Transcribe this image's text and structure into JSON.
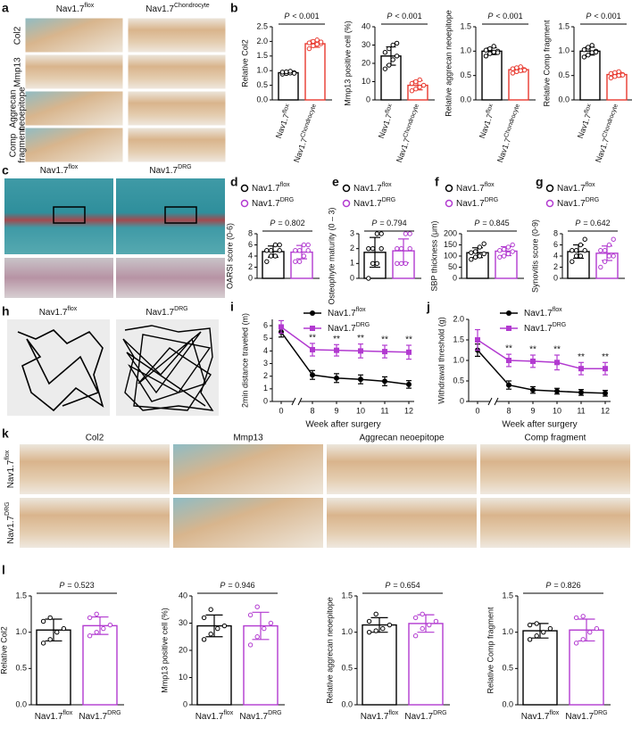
{
  "panel_labels": [
    "a",
    "b",
    "c",
    "d",
    "e",
    "f",
    "g",
    "h",
    "i",
    "j",
    "k",
    "l"
  ],
  "image_panels": {
    "a": {
      "columns": [
        {
          "text": "Nav1.7",
          "sup": "flox"
        },
        {
          "text": "Nav1.7",
          "sup": "Chondrocyte"
        }
      ],
      "rows": [
        [
          "Col2"
        ],
        [
          "Mmp13"
        ],
        [
          "Aggrecan",
          "neoepitope"
        ],
        [
          "Comp",
          "fragment"
        ]
      ]
    },
    "c": {
      "columns": [
        {
          "text": "Nav1.7",
          "sup": "flox"
        },
        {
          "text": "Nav1.7",
          "sup": "DRG"
        }
      ]
    },
    "h": {
      "columns": [
        {
          "text": "Nav1.7",
          "sup": "flox"
        },
        {
          "text": "Nav1.7",
          "sup": "DRG"
        }
      ]
    },
    "k": {
      "columns": [
        "Col2",
        "Mmp13",
        "Aggrecan neoepitope",
        "Comp fragment"
      ],
      "rows": [
        {
          "text": "Nav1.7",
          "sup": "flox"
        },
        {
          "text": "Nav1.7",
          "sup": "DRG"
        }
      ]
    }
  },
  "chart_data": [
    {
      "type": "bar",
      "ylabel": "Relative Col2",
      "ylim": [
        0,
        2.5
      ],
      "yticks": [
        {
          "value": 0,
          "label": "0.0"
        },
        {
          "value": 0.5,
          "label": "0.5"
        },
        {
          "value": 1,
          "label": "1.0"
        },
        {
          "value": 1.5,
          "label": "1.5"
        },
        {
          "value": 2,
          "label": "2.0"
        },
        {
          "value": 2.5,
          "label": "2.5"
        }
      ],
      "p_value": {
        "symbol": "P",
        "text": "< 0.001"
      },
      "series": [
        {
          "name": {
            "text": "Nav1.7",
            "sup": "flox"
          },
          "color": "#000000",
          "value": 0.93,
          "error": 0.05,
          "points": [
            0.88,
            0.9,
            0.92,
            0.93,
            0.95,
            0.96,
            0.98,
            0.91
          ]
        },
        {
          "name": {
            "text": "Nav1.7",
            "sup": "Chondrocyte"
          },
          "color": "#e8392f",
          "value": 1.92,
          "error": 0.12,
          "points": [
            1.75,
            1.85,
            1.9,
            1.92,
            1.95,
            2.0,
            2.05,
            1.98
          ]
        }
      ]
    },
    {
      "type": "bar",
      "ylabel": "Mmp13 positive cell (%)",
      "ylim": [
        0,
        40
      ],
      "yticks": [
        0,
        10,
        20,
        30,
        40
      ],
      "p_value": {
        "symbol": "P",
        "text": "< 0.001"
      },
      "series": [
        {
          "name": {
            "text": "Nav1.7",
            "sup": "flox"
          },
          "color": "#000000",
          "value": 24,
          "error": 5,
          "points": [
            17,
            19,
            22,
            24,
            26,
            28,
            30,
            31
          ]
        },
        {
          "name": {
            "text": "Nav1.7",
            "sup": "Chondrocyte"
          },
          "color": "#e8392f",
          "value": 8,
          "error": 2.5,
          "points": [
            5,
            6,
            7,
            8,
            9,
            10,
            11,
            8
          ]
        }
      ]
    },
    {
      "type": "bar",
      "ylabel": "Relative aggrecan neoepitope",
      "ylim": [
        0,
        1.5
      ],
      "yticks": [
        {
          "value": 0,
          "label": "0.0"
        },
        {
          "value": 0.5,
          "label": "0.5"
        },
        {
          "value": 1,
          "label": "1.0"
        },
        {
          "value": 1.5,
          "label": "1.5"
        }
      ],
      "p_value": {
        "symbol": "P",
        "text": "< 0.001"
      },
      "series": [
        {
          "name": {
            "text": "Nav1.7",
            "sup": "flox"
          },
          "color": "#000000",
          "value": 1.0,
          "error": 0.07,
          "points": [
            0.9,
            0.95,
            0.98,
            1.0,
            1.02,
            1.05,
            1.1,
            0.97
          ]
        },
        {
          "name": {
            "text": "Nav1.7",
            "sup": "Chondrocyte"
          },
          "color": "#e8392f",
          "value": 0.62,
          "error": 0.05,
          "points": [
            0.55,
            0.58,
            0.6,
            0.62,
            0.64,
            0.66,
            0.68,
            0.61
          ]
        }
      ]
    },
    {
      "type": "bar",
      "ylabel": "Relative Comp fragment",
      "ylim": [
        0,
        1.5
      ],
      "yticks": [
        {
          "value": 0,
          "label": "0.0"
        },
        {
          "value": 0.5,
          "label": "0.5"
        },
        {
          "value": 1,
          "label": "1.0"
        },
        {
          "value": 1.5,
          "label": "1.5"
        }
      ],
      "p_value": {
        "symbol": "P",
        "text": "< 0.001"
      },
      "series": [
        {
          "name": {
            "text": "Nav1.7",
            "sup": "flox"
          },
          "color": "#000000",
          "value": 1.0,
          "error": 0.08,
          "points": [
            0.88,
            0.92,
            0.97,
            1.0,
            1.03,
            1.08,
            1.12,
            0.98
          ]
        },
        {
          "name": {
            "text": "Nav1.7",
            "sup": "Chondrocyte"
          },
          "color": "#e8392f",
          "value": 0.52,
          "error": 0.05,
          "points": [
            0.45,
            0.48,
            0.5,
            0.52,
            0.54,
            0.56,
            0.58,
            0.51
          ]
        }
      ]
    },
    {
      "type": "bar",
      "legend": true,
      "ylabel": "OARSI score (0-6)",
      "ylim": [
        0,
        8
      ],
      "yticks": [
        0,
        2,
        4,
        6,
        8
      ],
      "p_value": {
        "symbol": "P",
        "text": "= 0.802"
      },
      "series": [
        {
          "name": {
            "text": "Nav1.7",
            "sup": "flox"
          },
          "color": "#000000",
          "value": 4.8,
          "error": 1.0,
          "points": [
            3,
            4,
            4,
            5,
            5,
            5,
            6,
            6
          ]
        },
        {
          "name": {
            "text": "Nav1.7",
            "sup": "DRG"
          },
          "color": "#b23ad0",
          "value": 4.7,
          "error": 1.2,
          "points": [
            3,
            3,
            4,
            5,
            5,
            5,
            6,
            6
          ]
        }
      ]
    },
    {
      "type": "bar",
      "legend": true,
      "ylabel": "Osteophyte maturity (0 – 3)",
      "ylim": [
        0,
        3
      ],
      "yticks": [
        0,
        1,
        2,
        3
      ],
      "p_value": {
        "symbol": "P",
        "text": "= 0.794"
      },
      "series": [
        {
          "name": {
            "text": "Nav1.7",
            "sup": "flox"
          },
          "color": "#000000",
          "value": 1.75,
          "error": 1.0,
          "points": [
            0,
            1,
            1,
            2,
            2,
            2,
            3,
            3
          ]
        },
        {
          "name": {
            "text": "Nav1.7",
            "sup": "DRG"
          },
          "color": "#b23ad0",
          "value": 1.85,
          "error": 0.8,
          "points": [
            1,
            1,
            1,
            2,
            2,
            2,
            3,
            3
          ]
        }
      ]
    },
    {
      "type": "bar",
      "legend": true,
      "ylabel": "SBP thickness (μm)",
      "ylim": [
        0,
        200
      ],
      "yticks": [
        0,
        50,
        100,
        150,
        200
      ],
      "p_value": {
        "symbol": "P",
        "text": "= 0.845"
      },
      "series": [
        {
          "name": {
            "text": "Nav1.7",
            "sup": "flox"
          },
          "color": "#000000",
          "value": 115,
          "error": 22,
          "points": [
            85,
            95,
            100,
            110,
            115,
            120,
            140,
            155
          ]
        },
        {
          "name": {
            "text": "Nav1.7",
            "sup": "DRG"
          },
          "color": "#b23ad0",
          "value": 122,
          "error": 20,
          "points": [
            95,
            100,
            110,
            120,
            125,
            130,
            140,
            150
          ]
        }
      ]
    },
    {
      "type": "bar",
      "legend": true,
      "ylabel": "Synovitis score (0-9)",
      "ylim": [
        0,
        8
      ],
      "yticks": [
        0,
        2,
        4,
        6,
        8
      ],
      "p_value": {
        "symbol": "P",
        "text": "= 0.642"
      },
      "series": [
        {
          "name": {
            "text": "Nav1.7",
            "sup": "flox"
          },
          "color": "#000000",
          "value": 4.8,
          "error": 1.2,
          "points": [
            3,
            4,
            4,
            5,
            5,
            5,
            6,
            7
          ]
        },
        {
          "name": {
            "text": "Nav1.7",
            "sup": "DRG"
          },
          "color": "#b23ad0",
          "value": 4.5,
          "error": 1.3,
          "points": [
            2,
            3,
            4,
            4,
            5,
            5,
            6,
            7
          ]
        }
      ]
    },
    {
      "type": "line",
      "ylabel": "2min distance traveled  (m)",
      "xlabel": "Week after surgery",
      "categories": [
        "0",
        "8",
        "9",
        "10",
        "11",
        "12"
      ],
      "ylim": [
        0,
        6.5
      ],
      "yticks": [
        0,
        1,
        2,
        3,
        4,
        5,
        6
      ],
      "sig_labels": [
        null,
        "**",
        "**",
        "**",
        "**",
        "**"
      ],
      "series": [
        {
          "name": {
            "text": "Nav1.7",
            "sup": "flox"
          },
          "color": "#000000",
          "marker": "circle",
          "values": [
            5.5,
            2.1,
            1.85,
            1.75,
            1.6,
            1.35
          ],
          "errors": [
            0.4,
            0.35,
            0.35,
            0.35,
            0.35,
            0.3
          ]
        },
        {
          "name": {
            "text": "Nav1.7",
            "sup": "DRG"
          },
          "color": "#b23ad0",
          "marker": "square",
          "values": [
            5.9,
            4.1,
            4.05,
            4.0,
            3.95,
            3.9
          ],
          "errors": [
            0.5,
            0.5,
            0.45,
            0.55,
            0.5,
            0.55
          ]
        }
      ]
    },
    {
      "type": "line",
      "ylabel": "Withdrawal threshold (g)",
      "xlabel": "Week after surgery",
      "categories": [
        "0",
        "8",
        "9",
        "10",
        "11",
        "12"
      ],
      "ylim": [
        0,
        2
      ],
      "yticks": [
        0,
        0.5,
        {
          "value": 1,
          "label": "1.0"
        },
        1.5,
        {
          "value": 2,
          "label": "2.0"
        }
      ],
      "sig_labels": [
        null,
        "**",
        "**",
        "**",
        "**",
        "**"
      ],
      "series": [
        {
          "name": {
            "text": "Nav1.7",
            "sup": "flox"
          },
          "color": "#000000",
          "marker": "circle",
          "values": [
            1.25,
            0.4,
            0.28,
            0.25,
            0.22,
            0.2
          ],
          "errors": [
            0.15,
            0.1,
            0.08,
            0.07,
            0.07,
            0.07
          ]
        },
        {
          "name": {
            "text": "Nav1.7",
            "sup": "DRG"
          },
          "color": "#b23ad0",
          "marker": "square",
          "values": [
            1.5,
            1.0,
            0.98,
            0.95,
            0.8,
            0.8
          ],
          "errors": [
            0.25,
            0.15,
            0.15,
            0.18,
            0.15,
            0.15
          ]
        }
      ]
    },
    {
      "type": "bar",
      "ylabel": "Relative Col2",
      "ylim": [
        0,
        1.5
      ],
      "yticks": [
        {
          "value": 0,
          "label": "0.0"
        },
        {
          "value": 0.5,
          "label": "0.5"
        },
        {
          "value": 1,
          "label": "1.0"
        },
        {
          "value": 1.5,
          "label": "1.5"
        }
      ],
      "p_value": {
        "symbol": "P",
        "text": "= 0.523"
      },
      "series": [
        {
          "name": {
            "text": "Nav1.7",
            "sup": "flox"
          },
          "color": "#000000",
          "value": 1.03,
          "error": 0.15,
          "points": [
            0.85,
            0.9,
            1.0,
            1.05,
            1.15,
            1.2
          ]
        },
        {
          "name": {
            "text": "Nav1.7",
            "sup": "DRG"
          },
          "color": "#b23ad0",
          "value": 1.09,
          "error": 0.12,
          "points": [
            0.95,
            1.0,
            1.05,
            1.1,
            1.2,
            1.25
          ]
        }
      ]
    },
    {
      "type": "bar",
      "ylabel": "Mmp13 positive cell (%)",
      "ylim": [
        0,
        40
      ],
      "yticks": [
        0,
        10,
        20,
        30,
        40
      ],
      "p_value": {
        "symbol": "P",
        "text": "= 0.946"
      },
      "series": [
        {
          "name": {
            "text": "Nav1.7",
            "sup": "flox"
          },
          "color": "#000000",
          "value": 29,
          "error": 4,
          "points": [
            24,
            26,
            28,
            29,
            32,
            35
          ]
        },
        {
          "name": {
            "text": "Nav1.7",
            "sup": "DRG"
          },
          "color": "#b23ad0",
          "value": 29,
          "error": 5,
          "points": [
            22,
            25,
            28,
            30,
            33,
            36
          ]
        }
      ]
    },
    {
      "type": "bar",
      "ylabel": "Relative aggrecan neoepitope",
      "ylim": [
        0,
        1.5
      ],
      "yticks": [
        {
          "value": 0,
          "label": "0.0"
        },
        {
          "value": 0.5,
          "label": "0.5"
        },
        {
          "value": 1,
          "label": "1.0"
        },
        {
          "value": 1.5,
          "label": "1.5"
        }
      ],
      "p_value": {
        "symbol": "P",
        "text": "= 0.654"
      },
      "series": [
        {
          "name": {
            "text": "Nav1.7",
            "sup": "flox"
          },
          "color": "#000000",
          "value": 1.1,
          "error": 0.1,
          "points": [
            1.0,
            1.02,
            1.05,
            1.1,
            1.15,
            1.25
          ]
        },
        {
          "name": {
            "text": "Nav1.7",
            "sup": "DRG"
          },
          "color": "#b23ad0",
          "value": 1.12,
          "error": 0.12,
          "points": [
            0.95,
            1.05,
            1.1,
            1.15,
            1.2,
            1.25
          ]
        }
      ]
    },
    {
      "type": "bar",
      "ylabel": "Relative Comp fragment",
      "ylim": [
        0,
        1.5
      ],
      "yticks": [
        {
          "value": 0,
          "label": "0.0"
        },
        {
          "value": 0.5,
          "label": "0.5"
        },
        {
          "value": 1,
          "label": "1.0"
        },
        {
          "value": 1.5,
          "label": "1.5"
        }
      ],
      "p_value": {
        "symbol": "P",
        "text": "= 0.826"
      },
      "series": [
        {
          "name": {
            "text": "Nav1.7",
            "sup": "flox"
          },
          "color": "#000000",
          "value": 1.02,
          "error": 0.1,
          "points": [
            0.9,
            0.95,
            1.0,
            1.05,
            1.1,
            1.12
          ]
        },
        {
          "name": {
            "text": "Nav1.7",
            "sup": "DRG"
          },
          "color": "#b23ad0",
          "value": 1.03,
          "error": 0.15,
          "points": [
            0.85,
            0.9,
            1.0,
            1.05,
            1.2,
            1.22
          ]
        }
      ]
    }
  ]
}
